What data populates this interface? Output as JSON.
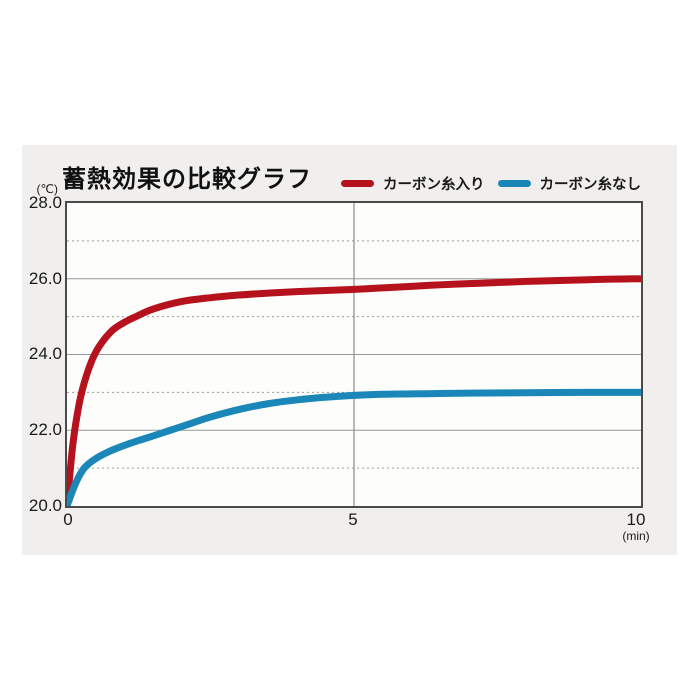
{
  "title": "蓄熱効果の比較グラフ",
  "legend": {
    "items": [
      {
        "label": "カーボン糸入り",
        "color": "#b5121d"
      },
      {
        "label": "カーボン糸なし",
        "color": "#1b87b8"
      }
    ]
  },
  "axes": {
    "y_unit": "(℃)",
    "x_unit": "(min)",
    "y_ticks": [
      "28.0",
      "26.0",
      "24.0",
      "22.0",
      "20.0"
    ],
    "x_ticks": [
      "0",
      "5",
      "10"
    ]
  },
  "colors": {
    "background": "#ffffff",
    "panel": "#f1efed",
    "frame": "#4a4a4a",
    "grid": "#999999",
    "series_red": "#b5121d",
    "series_blue": "#1b87b8",
    "text": "#1a1a1a"
  },
  "chart_data": {
    "type": "line",
    "title": "蓄熱効果の比較グラフ",
    "xlabel": "(min)",
    "ylabel": "(℃)",
    "xlim": [
      0,
      10
    ],
    "ylim": [
      20,
      28
    ],
    "x_tick_values": [
      0,
      5,
      10
    ],
    "y_tick_values": [
      20,
      22,
      24,
      26,
      28
    ],
    "solid_gridlines_y": [
      22,
      24,
      26
    ],
    "dashed_gridlines_y": [
      21,
      23,
      25,
      27
    ],
    "vertical_gridlines_x": [
      5
    ],
    "legend_position": "top-right",
    "grid": true,
    "series": [
      {
        "name": "カーボン糸入り",
        "color": "#b5121d",
        "points": [
          [
            0,
            20.0
          ],
          [
            0.1,
            21.6
          ],
          [
            0.2,
            22.6
          ],
          [
            0.3,
            23.25
          ],
          [
            0.45,
            23.9
          ],
          [
            0.6,
            24.3
          ],
          [
            0.8,
            24.65
          ],
          [
            1,
            24.85
          ],
          [
            1.2,
            25.0
          ],
          [
            1.5,
            25.2
          ],
          [
            2,
            25.4
          ],
          [
            2.5,
            25.5
          ],
          [
            3,
            25.57
          ],
          [
            3.5,
            25.62
          ],
          [
            4,
            25.66
          ],
          [
            4.5,
            25.69
          ],
          [
            5,
            25.72
          ],
          [
            5.5,
            25.76
          ],
          [
            6,
            25.8
          ],
          [
            6.5,
            25.84
          ],
          [
            7,
            25.87
          ],
          [
            7.5,
            25.9
          ],
          [
            8,
            25.93
          ],
          [
            8.5,
            25.95
          ],
          [
            9,
            25.97
          ],
          [
            9.5,
            25.99
          ],
          [
            10,
            26.0
          ]
        ]
      },
      {
        "name": "カーボン糸なし",
        "color": "#1b87b8",
        "points": [
          [
            0,
            20.0
          ],
          [
            0.15,
            20.6
          ],
          [
            0.3,
            21.0
          ],
          [
            0.5,
            21.25
          ],
          [
            0.75,
            21.45
          ],
          [
            1,
            21.6
          ],
          [
            1.25,
            21.73
          ],
          [
            1.5,
            21.85
          ],
          [
            1.8,
            22.0
          ],
          [
            2.1,
            22.15
          ],
          [
            2.5,
            22.35
          ],
          [
            3,
            22.55
          ],
          [
            3.5,
            22.7
          ],
          [
            4,
            22.8
          ],
          [
            4.5,
            22.87
          ],
          [
            5,
            22.92
          ],
          [
            5.5,
            22.95
          ],
          [
            6,
            22.96
          ],
          [
            6.5,
            22.97
          ],
          [
            7,
            22.98
          ],
          [
            8,
            22.99
          ],
          [
            9,
            23.0
          ],
          [
            10,
            23.0
          ]
        ]
      }
    ]
  }
}
